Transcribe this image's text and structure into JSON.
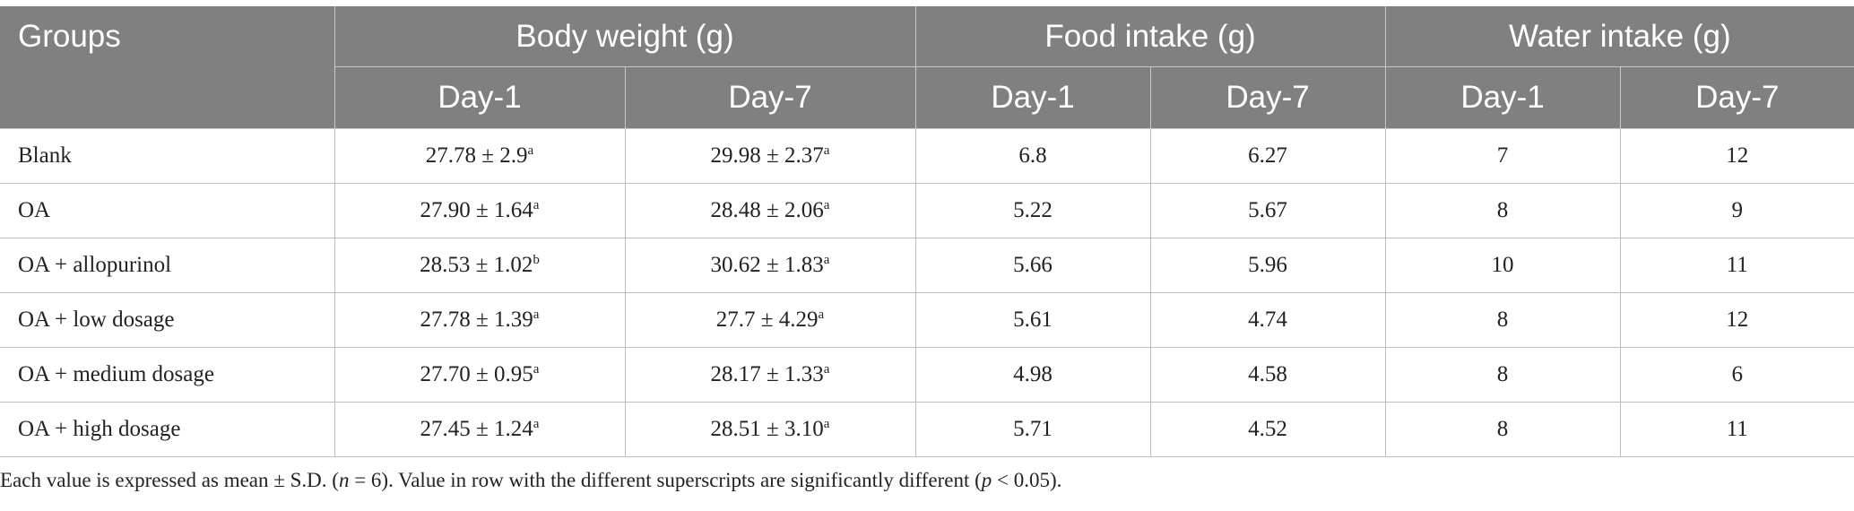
{
  "header": {
    "groups": "Groups",
    "body_weight": "Body weight (g)",
    "food_intake": "Food intake (g)",
    "water_intake": "Water intake (g)",
    "day1": "Day-1",
    "day7": "Day-7"
  },
  "rows": [
    {
      "group": "Blank",
      "bw_d1": "27.78 ± 2.9",
      "bw_d1_sup": "a",
      "bw_d7": "29.98 ± 2.37",
      "bw_d7_sup": "a",
      "fi_d1": "6.8",
      "fi_d7": "6.27",
      "wi_d1": "7",
      "wi_d7": "12"
    },
    {
      "group": "OA",
      "bw_d1": "27.90 ± 1.64",
      "bw_d1_sup": "a",
      "bw_d7": "28.48 ± 2.06",
      "bw_d7_sup": "a",
      "fi_d1": "5.22",
      "fi_d7": "5.67",
      "wi_d1": "8",
      "wi_d7": "9"
    },
    {
      "group": "OA + allopurinol",
      "bw_d1": "28.53 ± 1.02",
      "bw_d1_sup": "b",
      "bw_d7": "30.62 ± 1.83",
      "bw_d7_sup": "a",
      "fi_d1": "5.66",
      "fi_d7": "5.96",
      "wi_d1": "10",
      "wi_d7": "11"
    },
    {
      "group": "OA + low dosage",
      "bw_d1": "27.78 ± 1.39",
      "bw_d1_sup": "a",
      "bw_d7": "27.7 ± 4.29",
      "bw_d7_sup": "a",
      "fi_d1": "5.61",
      "fi_d7": "4.74",
      "wi_d1": "8",
      "wi_d7": "12"
    },
    {
      "group": "OA + medium dosage",
      "bw_d1": "27.70 ± 0.95",
      "bw_d1_sup": "a",
      "bw_d7": "28.17 ± 1.33",
      "bw_d7_sup": "a",
      "fi_d1": "4.98",
      "fi_d7": "4.58",
      "wi_d1": "8",
      "wi_d7": "6"
    },
    {
      "group": "OA + high dosage",
      "bw_d1": "27.45 ± 1.24",
      "bw_d1_sup": "a",
      "bw_d7": "28.51 ± 3.10",
      "bw_d7_sup": "a",
      "fi_d1": "5.71",
      "fi_d7": "4.52",
      "wi_d1": "8",
      "wi_d7": "11"
    }
  ],
  "footnote": {
    "part1": "Each value is expressed as mean ± S.D. (",
    "n_italic": "n",
    "part2": " = 6). Value in row with the different superscripts are significantly different (",
    "p_italic": "p",
    "part3": " < 0.05)."
  },
  "colors": {
    "header_bg": "#808080",
    "header_text": "#ffffff",
    "border": "#bdbdbd"
  }
}
